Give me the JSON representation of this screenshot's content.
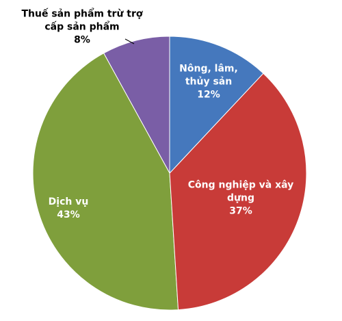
{
  "chart_data": {
    "type": "pie",
    "categories": [
      "Nông, lâm, thủy sản",
      "Công nghiệp và xây dựng",
      "Dịch vụ",
      "Thuế sản phẩm trừ trợ cấp sản phẩm"
    ],
    "values": [
      12,
      37,
      43,
      8
    ],
    "value_labels": [
      "12%",
      "37%",
      "43%",
      "8%"
    ],
    "colors": [
      "#4578bd",
      "#c83b38",
      "#7f9f3c",
      "#7a5ea6"
    ]
  }
}
